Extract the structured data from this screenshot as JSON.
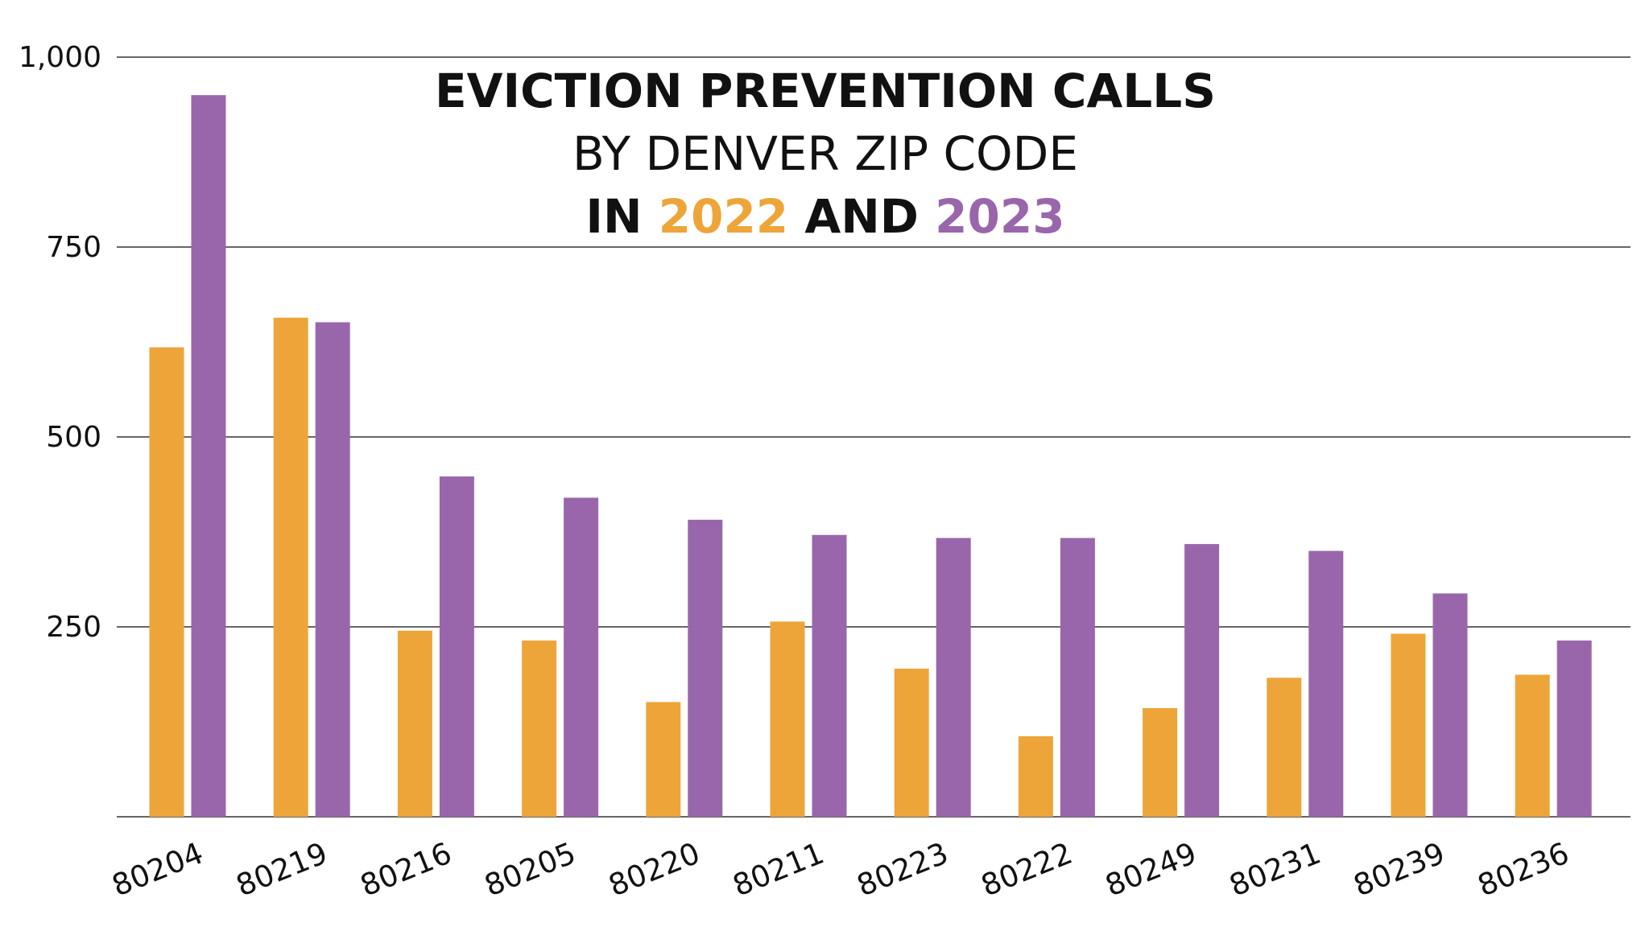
{
  "title": {
    "line1": "EVICTION PREVENTION CALLS",
    "line2": "BY DENVER ZIP CODE",
    "line3_prefix": "IN ",
    "line3_year1": "2022",
    "line3_mid": " AND ",
    "line3_year2": "2023"
  },
  "chart_data": {
    "type": "bar",
    "categories": [
      "80204",
      "80219",
      "80216",
      "80205",
      "80220",
      "80211",
      "80223",
      "80222",
      "80249",
      "80231",
      "80239",
      "80236"
    ],
    "series": [
      {
        "name": "2022",
        "color": "#eda53a",
        "values": [
          618,
          657,
          245,
          232,
          151,
          257,
          195,
          106,
          143,
          183,
          241,
          187
        ]
      },
      {
        "name": "2023",
        "color": "#9a66ab",
        "values": [
          950,
          651,
          448,
          420,
          391,
          371,
          367,
          367,
          359,
          350,
          294,
          232
        ]
      }
    ],
    "yticks": [
      "250",
      "500",
      "750",
      "1,000"
    ],
    "ylim": [
      0,
      1000
    ],
    "grid": true,
    "legend": "title"
  }
}
